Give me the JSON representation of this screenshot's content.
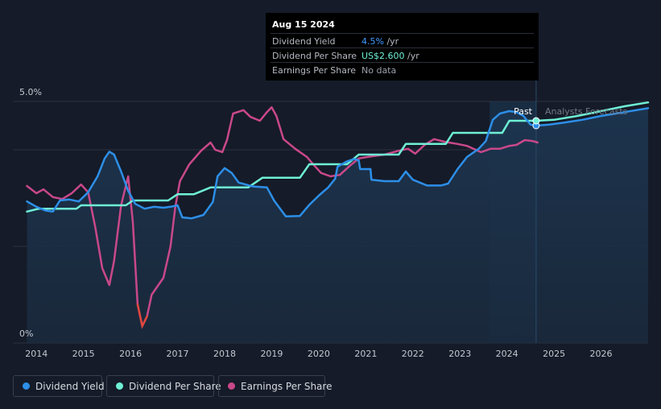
{
  "tooltip": {
    "date": "Aug 15 2024",
    "rows": [
      {
        "label": "Dividend Yield",
        "value": "4.5%",
        "unit": " /yr"
      },
      {
        "label": "Dividend Per Share",
        "value": "US$2.600",
        "unit": " /yr"
      },
      {
        "label": "Earnings Per Share",
        "value": "No data",
        "unit": ""
      }
    ]
  },
  "region_labels": {
    "past": "Past",
    "forecast": "Analysts Forecasts"
  },
  "legend": [
    {
      "label": "Dividend Yield",
      "color": "#2d8fe8"
    },
    {
      "label": "Dividend Per Share",
      "color": "#6ff0d6"
    },
    {
      "label": "Earnings Per Share",
      "color": "#c9488a"
    }
  ],
  "chart_data": {
    "type": "line",
    "x_ticks": [
      "2014",
      "2015",
      "2016",
      "2017",
      "2018",
      "2019",
      "2020",
      "2021",
      "2022",
      "2023",
      "2024",
      "2025",
      "2026"
    ],
    "y_ticks": [
      "0%",
      "5.0%"
    ],
    "xlim": [
      2013.5,
      2027.0
    ],
    "ylim": [
      0,
      5.0
    ],
    "past_forecast_split": 2024.62,
    "highlight_start": 2023.63,
    "series": [
      {
        "name": "Dividend Yield",
        "color": "#2d8fe8",
        "points": [
          [
            2013.8,
            2.93
          ],
          [
            2014.0,
            2.82
          ],
          [
            2014.2,
            2.74
          ],
          [
            2014.35,
            2.72
          ],
          [
            2014.5,
            2.95
          ],
          [
            2014.7,
            2.97
          ],
          [
            2014.9,
            2.93
          ],
          [
            2015.1,
            3.12
          ],
          [
            2015.3,
            3.45
          ],
          [
            2015.45,
            3.82
          ],
          [
            2015.55,
            3.96
          ],
          [
            2015.65,
            3.9
          ],
          [
            2015.8,
            3.55
          ],
          [
            2015.95,
            3.15
          ],
          [
            2016.1,
            2.88
          ],
          [
            2016.3,
            2.78
          ],
          [
            2016.5,
            2.82
          ],
          [
            2016.7,
            2.8
          ],
          [
            2016.85,
            2.82
          ],
          [
            2017.0,
            2.85
          ],
          [
            2017.1,
            2.6
          ],
          [
            2017.3,
            2.58
          ],
          [
            2017.55,
            2.65
          ],
          [
            2017.75,
            2.92
          ],
          [
            2017.85,
            3.45
          ],
          [
            2018.0,
            3.62
          ],
          [
            2018.15,
            3.52
          ],
          [
            2018.3,
            3.32
          ],
          [
            2018.6,
            3.24
          ],
          [
            2018.9,
            3.22
          ],
          [
            2019.05,
            2.95
          ],
          [
            2019.3,
            2.62
          ],
          [
            2019.6,
            2.63
          ],
          [
            2019.8,
            2.86
          ],
          [
            2020.0,
            3.05
          ],
          [
            2020.2,
            3.22
          ],
          [
            2020.35,
            3.4
          ],
          [
            2020.4,
            3.65
          ],
          [
            2020.6,
            3.76
          ],
          [
            2020.75,
            3.81
          ],
          [
            2020.85,
            3.78
          ],
          [
            2020.88,
            3.6
          ],
          [
            2021.1,
            3.6
          ],
          [
            2021.12,
            3.38
          ],
          [
            2021.4,
            3.35
          ],
          [
            2021.7,
            3.35
          ],
          [
            2021.85,
            3.55
          ],
          [
            2022.0,
            3.38
          ],
          [
            2022.3,
            3.26
          ],
          [
            2022.6,
            3.26
          ],
          [
            2022.75,
            3.3
          ],
          [
            2022.95,
            3.6
          ],
          [
            2023.15,
            3.85
          ],
          [
            2023.4,
            4.02
          ],
          [
            2023.55,
            4.18
          ],
          [
            2023.7,
            4.62
          ],
          [
            2023.85,
            4.75
          ],
          [
            2024.05,
            4.8
          ],
          [
            2024.2,
            4.78
          ],
          [
            2024.35,
            4.7
          ],
          [
            2024.5,
            4.52
          ],
          [
            2024.62,
            4.5
          ],
          [
            2024.9,
            4.52
          ],
          [
            2025.2,
            4.56
          ],
          [
            2025.6,
            4.62
          ],
          [
            2026.0,
            4.7
          ],
          [
            2026.5,
            4.78
          ],
          [
            2027.0,
            4.86
          ]
        ]
      },
      {
        "name": "Dividend Per Share",
        "color": "#6ff0d6",
        "points": [
          [
            2013.8,
            2.72
          ],
          [
            2014.05,
            2.78
          ],
          [
            2014.5,
            2.78
          ],
          [
            2014.85,
            2.78
          ],
          [
            2014.95,
            2.85
          ],
          [
            2015.9,
            2.85
          ],
          [
            2016.05,
            2.95
          ],
          [
            2016.8,
            2.95
          ],
          [
            2017.0,
            3.08
          ],
          [
            2017.35,
            3.08
          ],
          [
            2017.7,
            3.22
          ],
          [
            2018.5,
            3.22
          ],
          [
            2018.8,
            3.42
          ],
          [
            2019.6,
            3.42
          ],
          [
            2019.8,
            3.7
          ],
          [
            2020.6,
            3.7
          ],
          [
            2020.85,
            3.9
          ],
          [
            2021.7,
            3.9
          ],
          [
            2021.85,
            4.12
          ],
          [
            2022.7,
            4.12
          ],
          [
            2022.85,
            4.35
          ],
          [
            2023.9,
            4.35
          ],
          [
            2024.05,
            4.6
          ],
          [
            2024.62,
            4.6
          ],
          [
            2025.0,
            4.62
          ],
          [
            2025.5,
            4.7
          ],
          [
            2026.0,
            4.8
          ],
          [
            2026.5,
            4.9
          ],
          [
            2027.0,
            4.98
          ]
        ]
      },
      {
        "name": "Earnings Per Share",
        "color": "#c9488a",
        "points": [
          [
            2013.8,
            3.25
          ],
          [
            2014.0,
            3.1
          ],
          [
            2014.15,
            3.18
          ],
          [
            2014.35,
            3.02
          ],
          [
            2014.55,
            2.98
          ],
          [
            2014.75,
            3.1
          ],
          [
            2014.95,
            3.28
          ],
          [
            2015.1,
            3.12
          ],
          [
            2015.25,
            2.4
          ],
          [
            2015.4,
            1.55
          ],
          [
            2015.55,
            1.2
          ],
          [
            2015.65,
            1.7
          ],
          [
            2015.8,
            2.85
          ],
          [
            2015.95,
            3.45
          ],
          [
            2016.05,
            2.5
          ],
          [
            2016.15,
            0.8
          ],
          [
            2016.25,
            0.35
          ],
          [
            2016.35,
            0.55
          ],
          [
            2016.45,
            1.0
          ],
          [
            2016.7,
            1.35
          ],
          [
            2016.85,
            2.0
          ],
          [
            2016.95,
            2.8
          ],
          [
            2017.05,
            3.35
          ],
          [
            2017.25,
            3.7
          ],
          [
            2017.5,
            3.98
          ],
          [
            2017.7,
            4.15
          ],
          [
            2017.8,
            4.0
          ],
          [
            2017.95,
            3.95
          ],
          [
            2018.05,
            4.2
          ],
          [
            2018.18,
            4.75
          ],
          [
            2018.4,
            4.82
          ],
          [
            2018.55,
            4.68
          ],
          [
            2018.75,
            4.6
          ],
          [
            2018.9,
            4.78
          ],
          [
            2019.0,
            4.88
          ],
          [
            2019.1,
            4.7
          ],
          [
            2019.25,
            4.22
          ],
          [
            2019.5,
            4.02
          ],
          [
            2019.75,
            3.85
          ],
          [
            2019.9,
            3.68
          ],
          [
            2020.05,
            3.52
          ],
          [
            2020.25,
            3.45
          ],
          [
            2020.45,
            3.48
          ],
          [
            2020.65,
            3.66
          ],
          [
            2020.85,
            3.82
          ],
          [
            2021.1,
            3.86
          ],
          [
            2021.4,
            3.9
          ],
          [
            2021.7,
            3.98
          ],
          [
            2021.9,
            4.02
          ],
          [
            2022.05,
            3.92
          ],
          [
            2022.25,
            4.1
          ],
          [
            2022.45,
            4.22
          ],
          [
            2022.7,
            4.16
          ],
          [
            2022.95,
            4.12
          ],
          [
            2023.15,
            4.08
          ],
          [
            2023.45,
            3.95
          ],
          [
            2023.65,
            4.02
          ],
          [
            2023.85,
            4.02
          ],
          [
            2024.05,
            4.08
          ],
          [
            2024.2,
            4.1
          ],
          [
            2024.38,
            4.2
          ],
          [
            2024.55,
            4.18
          ],
          [
            2024.65,
            4.15
          ]
        ]
      }
    ]
  }
}
